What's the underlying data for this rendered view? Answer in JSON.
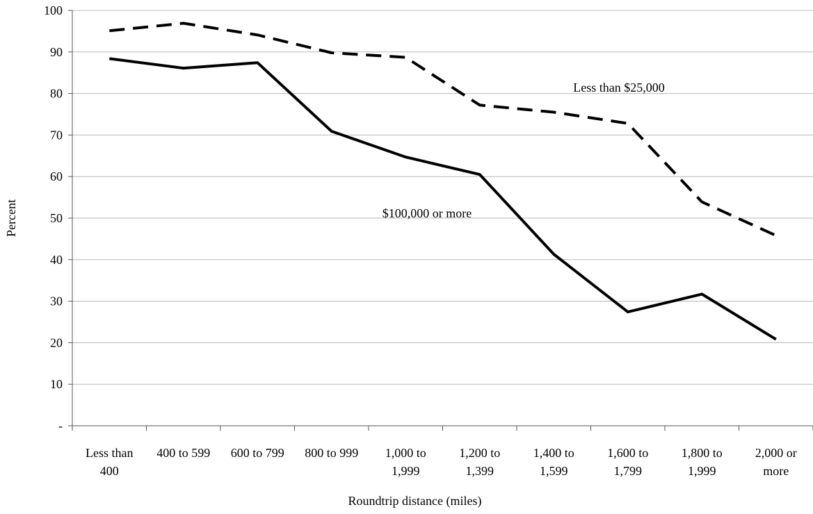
{
  "chart_data": {
    "type": "line",
    "title": "",
    "xlabel": "Roundtrip distance (miles)",
    "ylabel": "Percent",
    "ylim": [
      0,
      100
    ],
    "yticks": [
      0,
      10,
      20,
      30,
      40,
      50,
      60,
      70,
      80,
      90,
      100
    ],
    "ytick_labels": [
      "-",
      "10",
      "20",
      "30",
      "40",
      "50",
      "60",
      "70",
      "80",
      "90",
      "100"
    ],
    "grid": true,
    "categories": [
      [
        "Less than",
        "400"
      ],
      [
        "400 to 599"
      ],
      [
        "600 to 799"
      ],
      [
        "800 to 999"
      ],
      [
        "1,000 to",
        "1,999"
      ],
      [
        "1,200 to",
        "1,399"
      ],
      [
        "1,400 to",
        "1,599"
      ],
      [
        "1,600 to",
        "1,799"
      ],
      [
        "1,800 to",
        "1,999"
      ],
      [
        "2,000 or",
        "more"
      ]
    ],
    "series": [
      {
        "name": "Less than $25,000",
        "style": "dashed",
        "color": "#000000",
        "values": [
          95.1,
          96.9,
          94.1,
          89.8,
          88.7,
          77.2,
          75.5,
          72.8,
          53.9,
          45.8
        ]
      },
      {
        "name": "$100,000 or more",
        "style": "solid",
        "color": "#000000",
        "values": [
          88.4,
          86.1,
          87.4,
          70.9,
          64.7,
          60.5,
          41.3,
          27.4,
          31.7,
          20.8
        ]
      }
    ]
  }
}
